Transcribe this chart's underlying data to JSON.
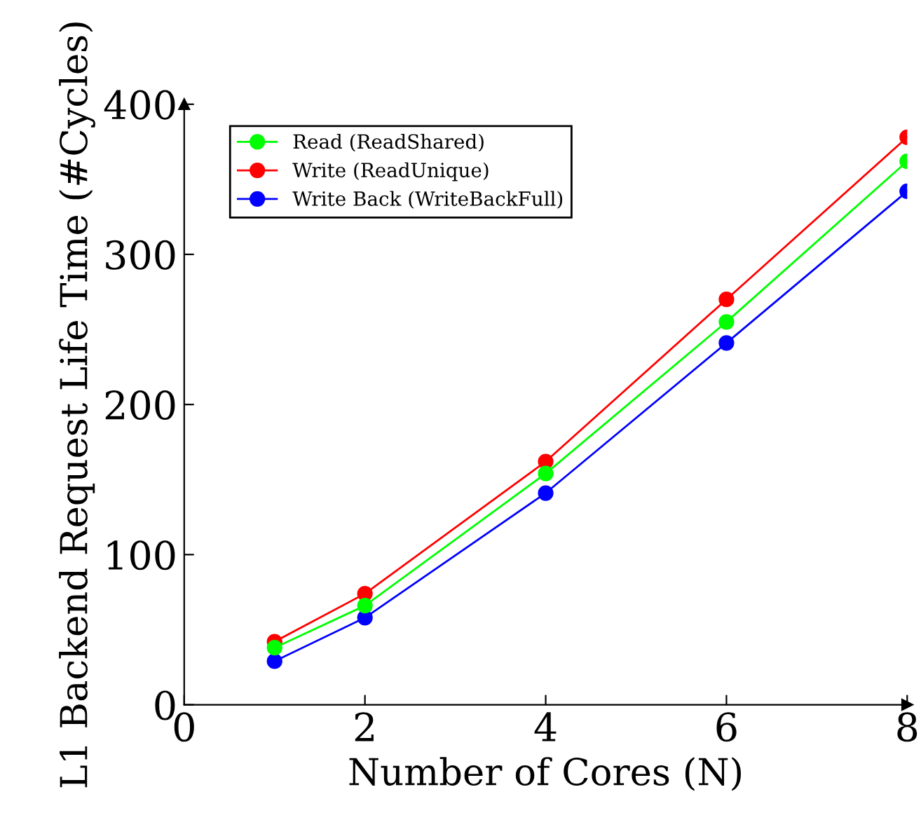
{
  "chart_data": {
    "type": "line",
    "xlabel": "Number of Cores (N)",
    "ylabel": "L1 Backend Request Life Time (#Cycles)",
    "x": [
      1,
      2,
      4,
      6,
      8
    ],
    "series": [
      {
        "name": "Read (ReadShared)",
        "color": "#00ff00",
        "values": [
          38,
          66,
          154,
          255,
          362
        ]
      },
      {
        "name": "Write (ReadUnique)",
        "color": "#ff0000",
        "values": [
          42,
          74,
          162,
          270,
          378
        ]
      },
      {
        "name": "Write Back (WriteBackFull)",
        "color": "#0000ff",
        "values": [
          29,
          58,
          141,
          241,
          342
        ]
      }
    ],
    "xlim": [
      0,
      8
    ],
    "ylim": [
      0,
      400
    ],
    "xticks": [
      0,
      2,
      4,
      6,
      8
    ],
    "yticks": [
      0,
      100,
      200,
      300,
      400
    ],
    "grid": false,
    "legend": "top left",
    "marker": "circle",
    "line_style": "solid"
  }
}
